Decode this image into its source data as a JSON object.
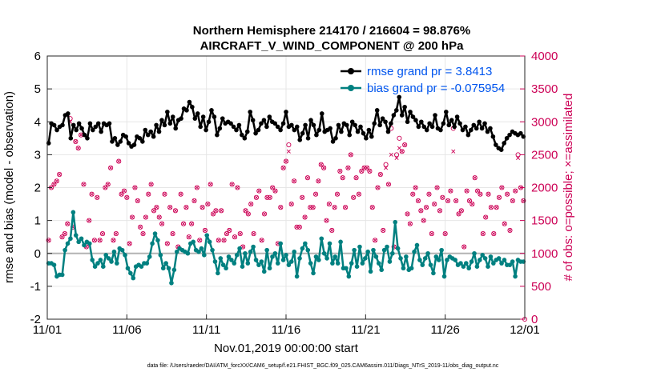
{
  "chart_data": {
    "type": "line",
    "title_line1": "Northern Hemisphere 214170 / 216604 = 98.876%",
    "title_line2": "AIRCRAFT_V_WIND_COMPONENT @ 200 hPa",
    "xlabel": "Nov.01,2019 00:00:00 start",
    "ylabel_left": "rmse and bias (model - observation)",
    "ylabel_right": "# of obs: o=possible; ×=assimilated",
    "footer": "data file: /Users/raeder/DAI/ATM_forcXX/CAM6_setup/f.e21.FHIST_BGC.f09_025.CAM6assim.011/Diags_NTrS_2019-11/obs_diag_output.nc",
    "x_tick_labels": [
      "11/01",
      "11/06",
      "11/11",
      "11/16",
      "11/21",
      "11/26",
      "12/01"
    ],
    "x_tick_days": [
      0,
      5,
      10,
      15,
      20,
      25,
      30
    ],
    "xlim": [
      0,
      30
    ],
    "ylim_left": [
      -2,
      6
    ],
    "ylim_right": [
      0,
      4000
    ],
    "y_ticks_left": [
      "-2",
      "-1",
      "0",
      "1",
      "2",
      "3",
      "4",
      "5",
      "6"
    ],
    "y_ticks_right": [
      "0",
      "500",
      "1000",
      "1500",
      "2000",
      "2500",
      "3000",
      "3500",
      "4000"
    ],
    "legend_location": "top-right",
    "colors": {
      "rmse": "#000000",
      "bias": "#008080",
      "obs": "#cc0055",
      "legend_text": "#0055ee",
      "zero_line": "#b3b3b3"
    },
    "series": [
      {
        "name": "rmse grand pr = 3.8413",
        "axis": "left",
        "values": [
          3.35,
          3.95,
          3.9,
          3.75,
          3.85,
          3.9,
          4.2,
          4.25,
          3.5,
          3.9,
          3.75,
          3.95,
          3.8,
          3.6,
          3.5,
          3.95,
          3.75,
          3.85,
          3.95,
          3.7,
          3.95,
          3.9,
          3.95,
          3.4,
          3.5,
          3.3,
          3.4,
          3.6,
          3.55,
          3.35,
          3.25,
          3.3,
          3.55,
          3.5,
          3.4,
          3.75,
          3.6,
          3.7,
          3.55,
          3.9,
          3.7,
          4.05,
          3.9,
          4.3,
          3.95,
          4.15,
          3.8,
          4.05,
          4.1,
          4.4,
          4.35,
          4.6,
          4.45,
          4.1,
          4.25,
          3.85,
          4.15,
          3.75,
          4.0,
          4.35,
          4.15,
          3.6,
          3.8,
          4.1,
          3.95,
          4.0,
          3.95,
          3.85,
          3.75,
          3.9,
          3.6,
          3.5,
          3.7,
          4.3,
          4.05,
          3.65,
          3.75,
          3.95,
          4.05,
          3.85,
          4.15,
          4.0,
          3.95,
          3.85,
          3.75,
          3.95,
          4.3,
          3.85,
          3.9,
          3.75,
          3.85,
          3.45,
          3.65,
          3.9,
          3.5,
          4.05,
          3.9,
          3.6,
          3.75,
          4.25,
          3.7,
          3.75,
          3.8,
          3.4,
          3.5,
          3.9,
          3.7,
          3.95,
          3.9,
          3.6,
          4.0,
          3.9,
          3.7,
          3.85,
          3.65,
          3.5,
          3.75,
          3.55,
          3.95,
          4.35,
          3.9,
          4.1,
          4.0,
          3.7,
          3.95,
          4.2,
          4.35,
          4.75,
          4.2,
          4.45,
          4.0,
          4.3,
          4.15,
          4.05,
          3.85,
          4.0,
          3.85,
          3.75,
          3.95,
          3.85,
          4.2,
          3.8,
          3.75,
          3.95,
          4.3,
          3.9,
          4.05,
          3.85,
          4.15,
          3.95,
          3.75,
          3.85,
          3.6,
          3.75,
          3.9,
          3.8,
          4.0,
          3.8,
          3.95,
          3.7,
          3.8,
          3.55,
          3.3,
          3.2,
          3.15,
          3.35,
          3.5,
          3.6,
          3.7,
          3.65,
          3.6,
          3.65,
          3.55
        ]
      },
      {
        "name": "bias grand pr = -0.075954",
        "axis": "left",
        "values": [
          -0.3,
          -0.3,
          -0.35,
          -0.7,
          -0.65,
          -0.65,
          0.1,
          0.3,
          0.45,
          1.25,
          0.55,
          0.35,
          0.45,
          0.25,
          0.35,
          0.3,
          -0.2,
          -0.4,
          -0.3,
          -0.2,
          -0.4,
          -0.05,
          -0.15,
          -0.25,
          0.05,
          -0.3,
          0.15,
          0.1,
          -0.05,
          -0.45,
          -0.6,
          -0.75,
          -0.4,
          -0.35,
          -0.4,
          -0.3,
          -0.3,
          -0.1,
          0.3,
          0.6,
          0.4,
          -0.05,
          -0.45,
          -0.3,
          -0.45,
          -0.9,
          -0.5,
          0.05,
          0.15,
          0.1,
          0.05,
          0.0,
          0.3,
          0.35,
          0.1,
          0.05,
          0.15,
          -0.05,
          0.55,
          0.35,
          0.1,
          -0.25,
          -0.6,
          -0.15,
          -0.35,
          -0.45,
          -0.1,
          -0.2,
          -0.3,
          -0.05,
          0.15,
          -0.4,
          0.0,
          -0.3,
          0.05,
          0.2,
          -0.2,
          -0.35,
          -0.25,
          -0.55,
          0.1,
          -0.45,
          -0.1,
          0.0,
          -0.3,
          0.3,
          -0.2,
          -0.05,
          -0.35,
          -0.25,
          0.05,
          -0.7,
          -0.15,
          0.15,
          0.3,
          0.1,
          -0.3,
          -0.6,
          -0.1,
          -0.2,
          0.45,
          0.0,
          -0.15,
          0.3,
          -0.3,
          -0.1,
          -0.3,
          0.35,
          -0.45,
          -0.45,
          -0.7,
          -0.3,
          0.1,
          -0.4,
          0.2,
          -0.3,
          -0.15,
          0.05,
          -0.55,
          0.1,
          -0.1,
          -0.3,
          -0.5,
          0.1,
          0.2,
          -0.25,
          0.0,
          0.95,
          0.15,
          -0.15,
          -0.45,
          -0.1,
          -0.5,
          -0.45,
          0.05,
          0.25,
          -0.2,
          -0.35,
          -0.15,
          0.0,
          -0.35,
          -0.6,
          -0.1,
          -0.2,
          0.1,
          -0.7,
          -0.2,
          -0.1,
          -0.15,
          -0.2,
          -0.35,
          -0.3,
          -0.4,
          -0.3,
          -0.45,
          -0.25,
          0.0,
          -0.4,
          -0.2,
          -0.05,
          -0.15,
          -0.4,
          -0.1,
          -0.3,
          -0.2,
          -0.15,
          -0.3,
          -0.2,
          -0.35,
          -0.35,
          -0.25,
          -0.7,
          -0.2,
          -0.25,
          -0.25
        ]
      },
      {
        "name": "# of obs possible",
        "axis": "right",
        "marker": "o",
        "values": [
          1200,
          2000,
          2050,
          2100,
          2200,
          1250,
          1300,
          1450,
          3050,
          1400,
          2700,
          2600,
          2800,
          2050,
          1100,
          1500,
          1900,
          1200,
          1850,
          1200,
          1300,
          2000,
          2050,
          2300,
          1200,
          1300,
          2400,
          1900,
          1950,
          1850,
          1150,
          1550,
          2000,
          1800,
          1400,
          1300,
          1550,
          1900,
          2050,
          1650,
          1700,
          1550,
          1450,
          1900,
          1150,
          1700,
          1300,
          1650,
          1100,
          1900,
          1450,
          1700,
          1250,
          1450,
          1800,
          2000,
          1200,
          1700,
          1350,
          1750,
          2050,
          1600,
          1650,
          1200,
          1650,
          1200,
          1300,
          1350,
          2050,
          1250,
          2000,
          1300,
          1100,
          1650,
          1600,
          1750,
          1300,
          1850,
          1950,
          1200,
          1600,
          1850,
          1850,
          2000,
          1950,
          1150,
          1700,
          2300,
          2400,
          2650,
          1750,
          2100,
          1400,
          1400,
          1850,
          1550,
          2150,
          1700,
          1700,
          1900,
          2100,
          2350,
          2300,
          1500,
          1750,
          1350,
          1700,
          1900,
          2250,
          2150,
          1700,
          2300,
          2500,
          1850,
          2150,
          1900,
          2250,
          2300,
          2300,
          2250,
          1700,
          1200,
          2000,
          2200,
          1350,
          2350,
          2050,
          2900,
          1100,
          2500,
          2750,
          2550,
          2650,
          1600,
          1450,
          1900,
          2000,
          1800,
          1650,
          1500,
          1700,
          1900,
          1300,
          1750,
          2000,
          1650,
          1850,
          1300,
          1800,
          1950,
          2900,
          1800,
          1600,
          1650,
          1100,
          1950,
          1800,
          1750,
          2150,
          1950,
          1900,
          1300,
          1550,
          1900,
          1700,
          1300,
          1700,
          1850,
          2000,
          1450,
          1900,
          1350,
          1800,
          1950,
          2500,
          2000,
          1800
        ]
      },
      {
        "name": "# of obs assimilated",
        "axis": "right",
        "marker": "x",
        "values": [
          1200,
          2000,
          2050,
          2100,
          2200,
          1250,
          1300,
          1450,
          3000,
          1400,
          2700,
          2600,
          2800,
          2050,
          1100,
          1500,
          1900,
          1200,
          1850,
          1200,
          1300,
          2000,
          2050,
          2300,
          1200,
          1300,
          2400,
          1900,
          1950,
          1850,
          1150,
          1550,
          2000,
          1800,
          1400,
          1300,
          1550,
          1900,
          2050,
          1650,
          1700,
          1550,
          1450,
          1900,
          1150,
          1700,
          1300,
          1650,
          1100,
          1900,
          1450,
          1700,
          1250,
          1450,
          1800,
          2000,
          1200,
          1700,
          1350,
          1750,
          2050,
          1600,
          1650,
          1200,
          1650,
          1200,
          1300,
          1350,
          2050,
          1250,
          2000,
          1300,
          1100,
          1650,
          1600,
          1750,
          1300,
          1850,
          1950,
          1200,
          1600,
          1850,
          1850,
          2000,
          1950,
          1150,
          1700,
          2300,
          2400,
          2550,
          1750,
          2100,
          1400,
          1400,
          1850,
          1550,
          2150,
          1700,
          1700,
          1900,
          2100,
          2350,
          2300,
          1500,
          1750,
          1350,
          1700,
          1900,
          2250,
          2150,
          1700,
          2300,
          2500,
          1850,
          2150,
          1900,
          2250,
          2300,
          2300,
          2250,
          1700,
          1200,
          2000,
          2200,
          1350,
          2300,
          2050,
          2500,
          1100,
          2450,
          2600,
          2550,
          2650,
          1600,
          1450,
          1900,
          2000,
          1800,
          1650,
          1500,
          1700,
          1900,
          1300,
          1750,
          2000,
          1650,
          1850,
          1300,
          1800,
          1950,
          2550,
          1800,
          1600,
          1650,
          1100,
          1950,
          1800,
          1750,
          2150,
          1950,
          1900,
          1300,
          1550,
          1900,
          1700,
          1300,
          1700,
          1850,
          2000,
          1450,
          1900,
          1350,
          1800,
          1950,
          2450,
          2000,
          1800
        ]
      }
    ],
    "obs_outlier_last": 0
  }
}
